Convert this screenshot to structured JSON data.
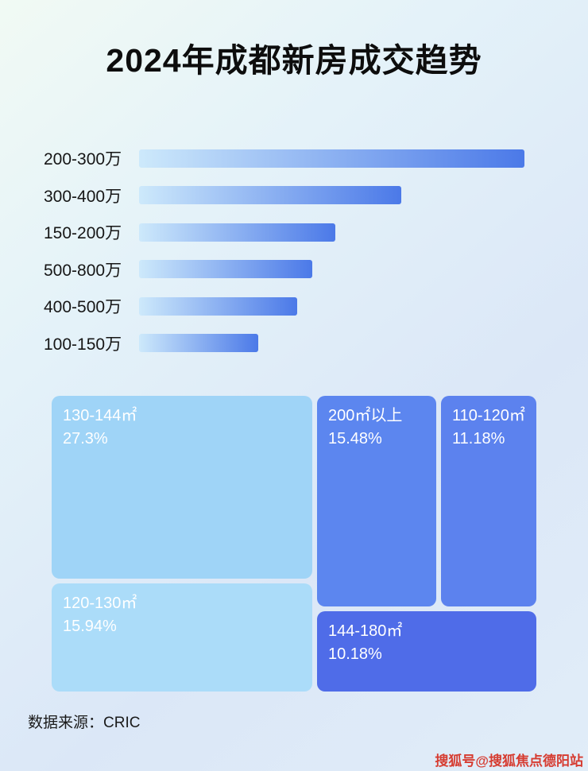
{
  "page": {
    "title": "2024年成都新房成交趋势",
    "source_note": "数据来源：CRIC",
    "watermark": "搜狐号@搜狐焦点德阳站"
  },
  "colors": {
    "bar_gradient_start": "#cde9fb",
    "bar_gradient_end": "#4b79e8",
    "watermark_red": "#d63c31"
  },
  "chart_data": [
    {
      "type": "bar",
      "orientation": "horizontal",
      "title": "2024年成都新房成交趋势",
      "categories": [
        "200-300万",
        "300-400万",
        "150-200万",
        "500-800万",
        "400-500万",
        "100-150万"
      ],
      "values": [
        100,
        68,
        51,
        45,
        41,
        31
      ],
      "value_note": "no numeric axis or data labels shown; values are relative bar lengths with longest bar = 100",
      "xlabel": "",
      "ylabel": "",
      "grid": false,
      "legend": false
    },
    {
      "type": "treemap",
      "title": "",
      "items": [
        {
          "label": "130-144㎡",
          "percent": "27.3%",
          "value": 27.3,
          "color": "#9fd4f7"
        },
        {
          "label": "200㎡以上",
          "percent": "15.48%",
          "value": 15.48,
          "color": "#5c86ef"
        },
        {
          "label": "110-120㎡",
          "percent": "11.18%",
          "value": 11.18,
          "color": "#5c82ee"
        },
        {
          "label": "120-130㎡",
          "percent": "15.94%",
          "value": 15.94,
          "color": "#abdcf9"
        },
        {
          "label": "144-180㎡",
          "percent": "10.18%",
          "value": 10.18,
          "color": "#4f6ce8"
        }
      ]
    }
  ]
}
